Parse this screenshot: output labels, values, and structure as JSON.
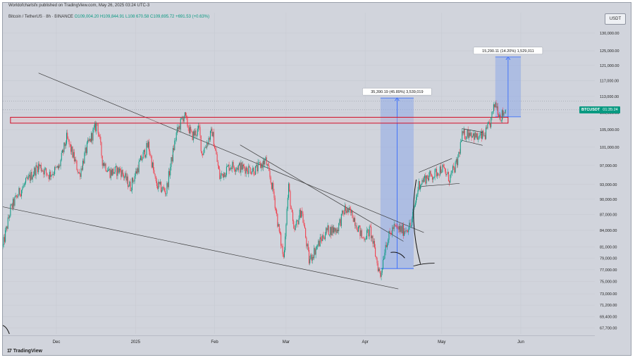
{
  "header": {
    "published": "Worldofchartsfx published on TradingView.com, May 26, 2025 03:24 UTC-3",
    "symbol": "Bitcoin / TetherUS · 8h · BINANCE",
    "ohlc": "O109,004.20 H109,844.91 L108,670.58 C109,695.72",
    "change": "+691.53 (+0.63%)",
    "currency": "USDT"
  },
  "price_tag": {
    "symbol": "BTCUSDT",
    "countdown": "01:35:24",
    "color": "#089981"
  },
  "footer": {
    "logo": "TradingView"
  },
  "measures": [
    {
      "label": "35,390.19 (45.89%) 3,539,019"
    },
    {
      "label": "15,290.11 (14.20%) 1,529,011"
    }
  ],
  "colors": {
    "up": "#089981",
    "down": "#f23645",
    "measure_fill": "#90a9e8",
    "measure_line": "#2962ff",
    "resistance": "#d0102a",
    "trendline": "#3a3a3a",
    "background": "#d1d4dc"
  },
  "chart_data": {
    "type": "candlestick",
    "title": "Bitcoin / TetherUS · 8h · BINANCE",
    "y_tick_labels": [
      "130,000.00",
      "125,000.00",
      "121,000.00",
      "117,000.00",
      "113,000.00",
      "109,000.00",
      "105,000.00",
      "101,000.00",
      "97,000.00",
      "93,000.00",
      "90,000.00",
      "87,000.00",
      "84,000.00",
      "81,000.00",
      "79,000.00",
      "77,000.00",
      "75,000.00",
      "73,000.00",
      "71,200.00",
      "69,400.00",
      "67,700.00"
    ],
    "y_tick_values": [
      130000,
      125000,
      121000,
      117000,
      113000,
      109000,
      105000,
      101000,
      97000,
      93000,
      90000,
      87000,
      84000,
      81000,
      79000,
      77000,
      75000,
      73000,
      71200,
      69400,
      67700
    ],
    "x_tick_labels": [
      "Dec",
      "2025",
      "Feb",
      "Mar",
      "Apr",
      "May",
      "Jun"
    ],
    "x_tick_dates": [
      "2024-12-01",
      "2025-01-01",
      "2025-02-01",
      "2025-03-01",
      "2025-04-01",
      "2025-05-01",
      "2025-06-01"
    ],
    "y_scale": "log",
    "date_range": [
      "2024-11-10",
      "2025-06-30"
    ],
    "price_range": [
      66800,
      136000
    ],
    "last_price": 109695.72,
    "daily_close_path": [
      [
        "2024-11-10",
        81000
      ],
      [
        "2024-11-13",
        88000
      ],
      [
        "2024-11-16",
        91000
      ],
      [
        "2024-11-20",
        94000
      ],
      [
        "2024-11-24",
        97000
      ],
      [
        "2024-11-28",
        95000
      ],
      [
        "2024-12-02",
        96500
      ],
      [
        "2024-12-05",
        103000
      ],
      [
        "2024-12-07",
        100000
      ],
      [
        "2024-12-10",
        95000
      ],
      [
        "2024-12-13",
        101000
      ],
      [
        "2024-12-17",
        106500
      ],
      [
        "2024-12-19",
        98000
      ],
      [
        "2024-12-22",
        95500
      ],
      [
        "2024-12-26",
        96000
      ],
      [
        "2024-12-30",
        92500
      ],
      [
        "2025-01-03",
        98000
      ],
      [
        "2025-01-06",
        101500
      ],
      [
        "2025-01-09",
        93000
      ],
      [
        "2025-01-13",
        91500
      ],
      [
        "2025-01-17",
        104000
      ],
      [
        "2025-01-20",
        108500
      ],
      [
        "2025-01-23",
        103500
      ],
      [
        "2025-01-26",
        105000
      ],
      [
        "2025-01-27",
        99500
      ],
      [
        "2025-01-31",
        104500
      ],
      [
        "2025-02-03",
        94500
      ],
      [
        "2025-02-07",
        97000
      ],
      [
        "2025-02-12",
        96500
      ],
      [
        "2025-02-17",
        96000
      ],
      [
        "2025-02-21",
        98000
      ],
      [
        "2025-02-24",
        91500
      ],
      [
        "2025-02-26",
        84500
      ],
      [
        "2025-02-28",
        79000
      ],
      [
        "2025-03-02",
        92500
      ],
      [
        "2025-03-04",
        83500
      ],
      [
        "2025-03-07",
        88000
      ],
      [
        "2025-03-10",
        78500
      ],
      [
        "2025-03-13",
        81000
      ],
      [
        "2025-03-17",
        84000
      ],
      [
        "2025-03-21",
        84200
      ],
      [
        "2025-03-24",
        88000
      ],
      [
        "2025-03-27",
        87000
      ],
      [
        "2025-03-31",
        82500
      ],
      [
        "2025-04-03",
        84000
      ],
      [
        "2025-04-06",
        77500
      ],
      [
        "2025-04-07",
        76000
      ],
      [
        "2025-04-09",
        81500
      ],
      [
        "2025-04-12",
        84500
      ],
      [
        "2025-04-16",
        84000
      ],
      [
        "2025-04-19",
        85000
      ],
      [
        "2025-04-22",
        93000
      ],
      [
        "2025-04-25",
        94500
      ],
      [
        "2025-04-28",
        95000
      ],
      [
        "2025-05-01",
        96500
      ],
      [
        "2025-05-04",
        94200
      ],
      [
        "2025-05-07",
        97500
      ],
      [
        "2025-05-09",
        103500
      ],
      [
        "2025-05-12",
        104500
      ],
      [
        "2025-05-15",
        103000
      ],
      [
        "2025-05-18",
        103800
      ],
      [
        "2025-05-20",
        106500
      ],
      [
        "2025-05-22",
        111500
      ],
      [
        "2025-05-24",
        108000
      ],
      [
        "2025-05-26",
        109695.72
      ]
    ],
    "drawings": {
      "resistance_zone": {
        "price_low": 106500,
        "price_high": 107900,
        "from": "2024-11-13",
        "to": "2025-05-27"
      },
      "upper_trendline": {
        "from": [
          "2024-11-24",
          119000
        ],
        "to": [
          "2025-04-24",
          83600
        ]
      },
      "middle_trendline": {
        "from": [
          "2025-02-11",
          101500
        ],
        "to": [
          "2025-04-16",
          82000
        ]
      },
      "lower_trendline": {
        "from": [
          "2024-11-10",
          88500
        ],
        "to": [
          "2025-04-14",
          73800
        ]
      },
      "measure_1": {
        "from": "2025-04-07",
        "to": "2025-04-20",
        "price_low": 77200,
        "price_high": 112600
      },
      "measure_2": {
        "from": "2025-05-22",
        "to": "2025-06-01",
        "price_low": 108000,
        "price_high": 123300
      }
    }
  }
}
